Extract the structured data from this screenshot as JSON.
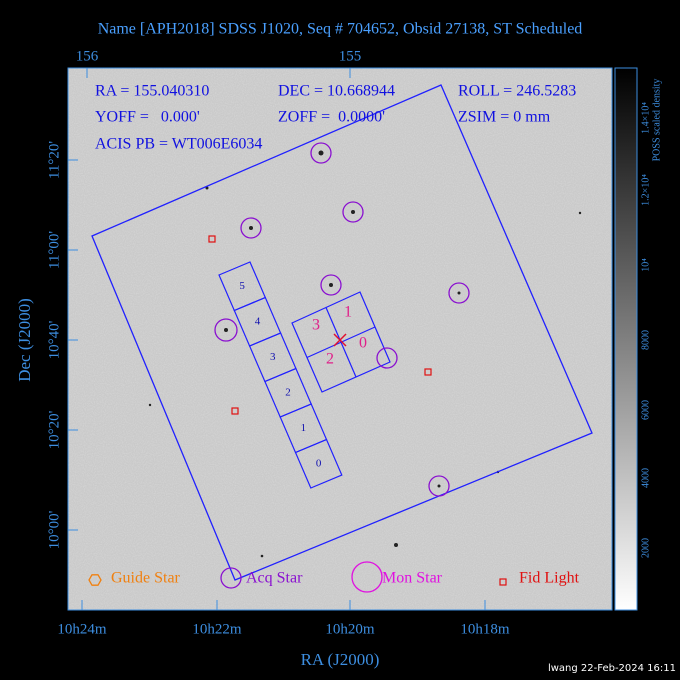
{
  "header": {
    "title": "Name [APH2018] SDSS J1020, Seq # 704652, Obsid 27138, ST Scheduled"
  },
  "top_axis": {
    "labels": [
      "156",
      "155"
    ]
  },
  "bottom_axis": {
    "title": "RA (J2000)",
    "labels": [
      "10h24m",
      "10h22m",
      "10h20m",
      "10h18m"
    ]
  },
  "left_axis": {
    "title": "Dec (J2000)",
    "labels": [
      "11°20'",
      "11°00'",
      "10°40'",
      "10°20'",
      "10°00'"
    ]
  },
  "info": {
    "ra": "RA = 155.040310",
    "dec": "DEC = 10.668944",
    "roll": "ROLL = 246.5283",
    "yoff": "YOFF =   0.000'",
    "zoff": "ZOFF =  0.0000'",
    "zsim": "ZSIM = 0 mm",
    "acis": "ACIS PB = WT006E6034"
  },
  "chips": {
    "i_array": [
      "3",
      "1",
      "2",
      "0"
    ],
    "s_array": [
      "5",
      "4",
      "3",
      "2",
      "1",
      "0"
    ]
  },
  "legend": [
    "Guide Star",
    "Acq Star",
    "Mon Star",
    "Fid Light"
  ],
  "colorbar": {
    "title": "POSS scaled density",
    "labels": [
      "2000",
      "4000",
      "6000",
      "8000",
      "10⁴",
      "1.2×10⁴",
      "1.4×10⁴"
    ]
  },
  "footer": "lwang 22-Feb-2024 16:11"
}
